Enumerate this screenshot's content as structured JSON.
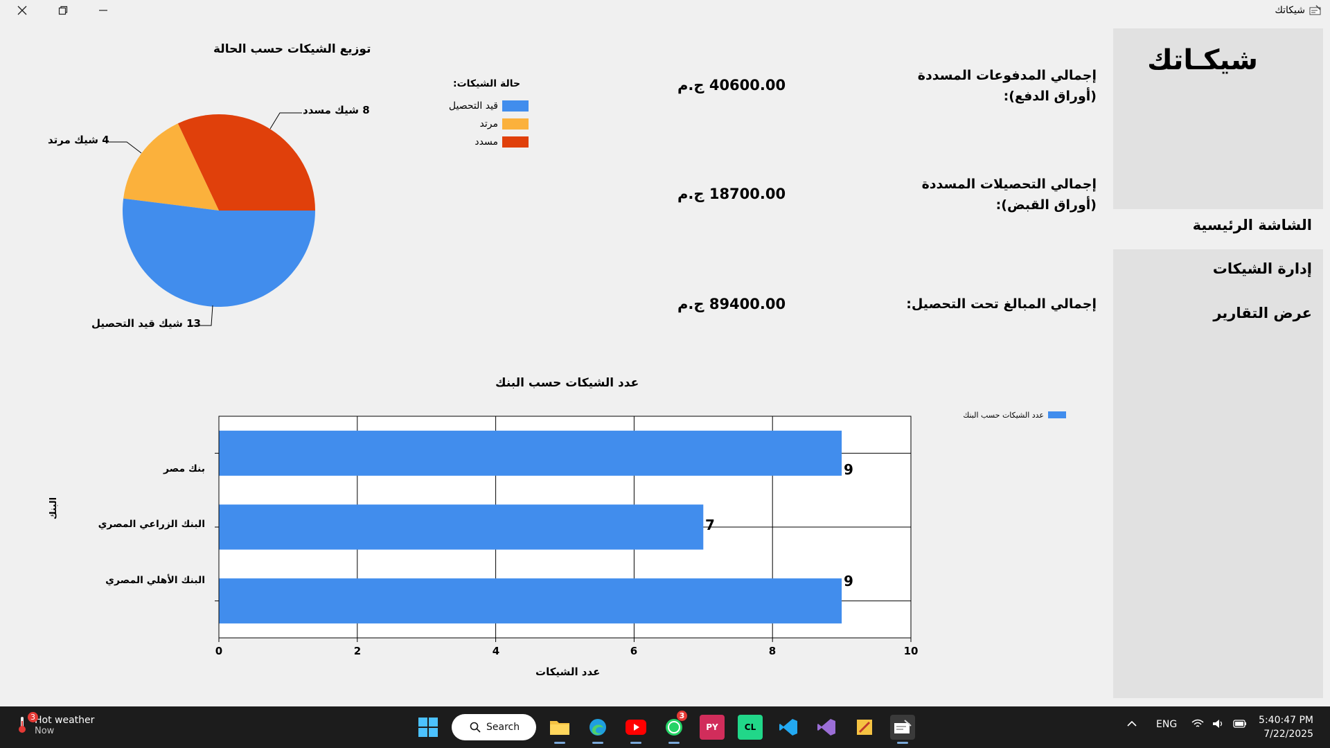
{
  "window": {
    "title": "شيكاتك",
    "controls": {
      "close_icon": "close-icon",
      "restore_icon": "restore-icon",
      "minimize_icon": "minimize-icon"
    }
  },
  "sidebar": {
    "brand": "شيكـاتك",
    "items": [
      {
        "label": "الشاشة الرئيسية"
      },
      {
        "label": "إدارة الشيكات"
      },
      {
        "label": "عرض التقارير"
      }
    ]
  },
  "summary": [
    {
      "label": "إجمالي المدفوعات المسددة (أوراق الدفع):",
      "value": "40600.00 ج.م"
    },
    {
      "label": "إجمالي التحصيلات المسددة (أوراق القبض):",
      "value": "18700.00 ج.م"
    },
    {
      "label": "إجمالي المبالغ تحت التحصيل:",
      "value": "89400.00 ج.م"
    }
  ],
  "colors": {
    "under_collection": "#418ded",
    "returned": "#fbb13c",
    "paid": "#e0400b",
    "bar": "#418ded"
  },
  "chart_data": [
    {
      "type": "pie",
      "title": "توزيع الشيكات حسب الحالة",
      "legend_title": "حالة الشيكات:",
      "legend_placement": "top-right",
      "slices": [
        {
          "name": "قيد التحصيل",
          "value": 13,
          "label": "13 شيك قيد التحصيل",
          "color": "#418ded"
        },
        {
          "name": "مرتد",
          "value": 4,
          "label": "4 شيك مرتد",
          "color": "#fbb13c"
        },
        {
          "name": "مسدد",
          "value": 8,
          "label": "8 شيك مسدد",
          "color": "#e0400b"
        }
      ]
    },
    {
      "type": "bar",
      "orientation": "horizontal",
      "title": "عدد الشيكات حسب البنك",
      "categories": [
        "بنك مصر",
        "البنك الزراعي المصري",
        "البنك الأهلي المصري"
      ],
      "series": [
        {
          "name": "عدد الشيكات حسب البنك",
          "values": [
            9,
            7,
            9
          ]
        }
      ],
      "xlabel": "عدد الشيكات",
      "ylabel": "البنك",
      "xlim": [
        0,
        10
      ],
      "xticks": [
        "0",
        "2",
        "4",
        "6",
        "8",
        "10"
      ],
      "grid": true,
      "legend_placement": "top-right"
    }
  ],
  "taskbar": {
    "weather_title": "Hot weather",
    "weather_sub": "Now",
    "weather_badge": "3",
    "search_label": "Search",
    "whatsapp_badge": "3",
    "language": "ENG",
    "time": "5:40:47 PM",
    "date": "7/22/2025"
  }
}
